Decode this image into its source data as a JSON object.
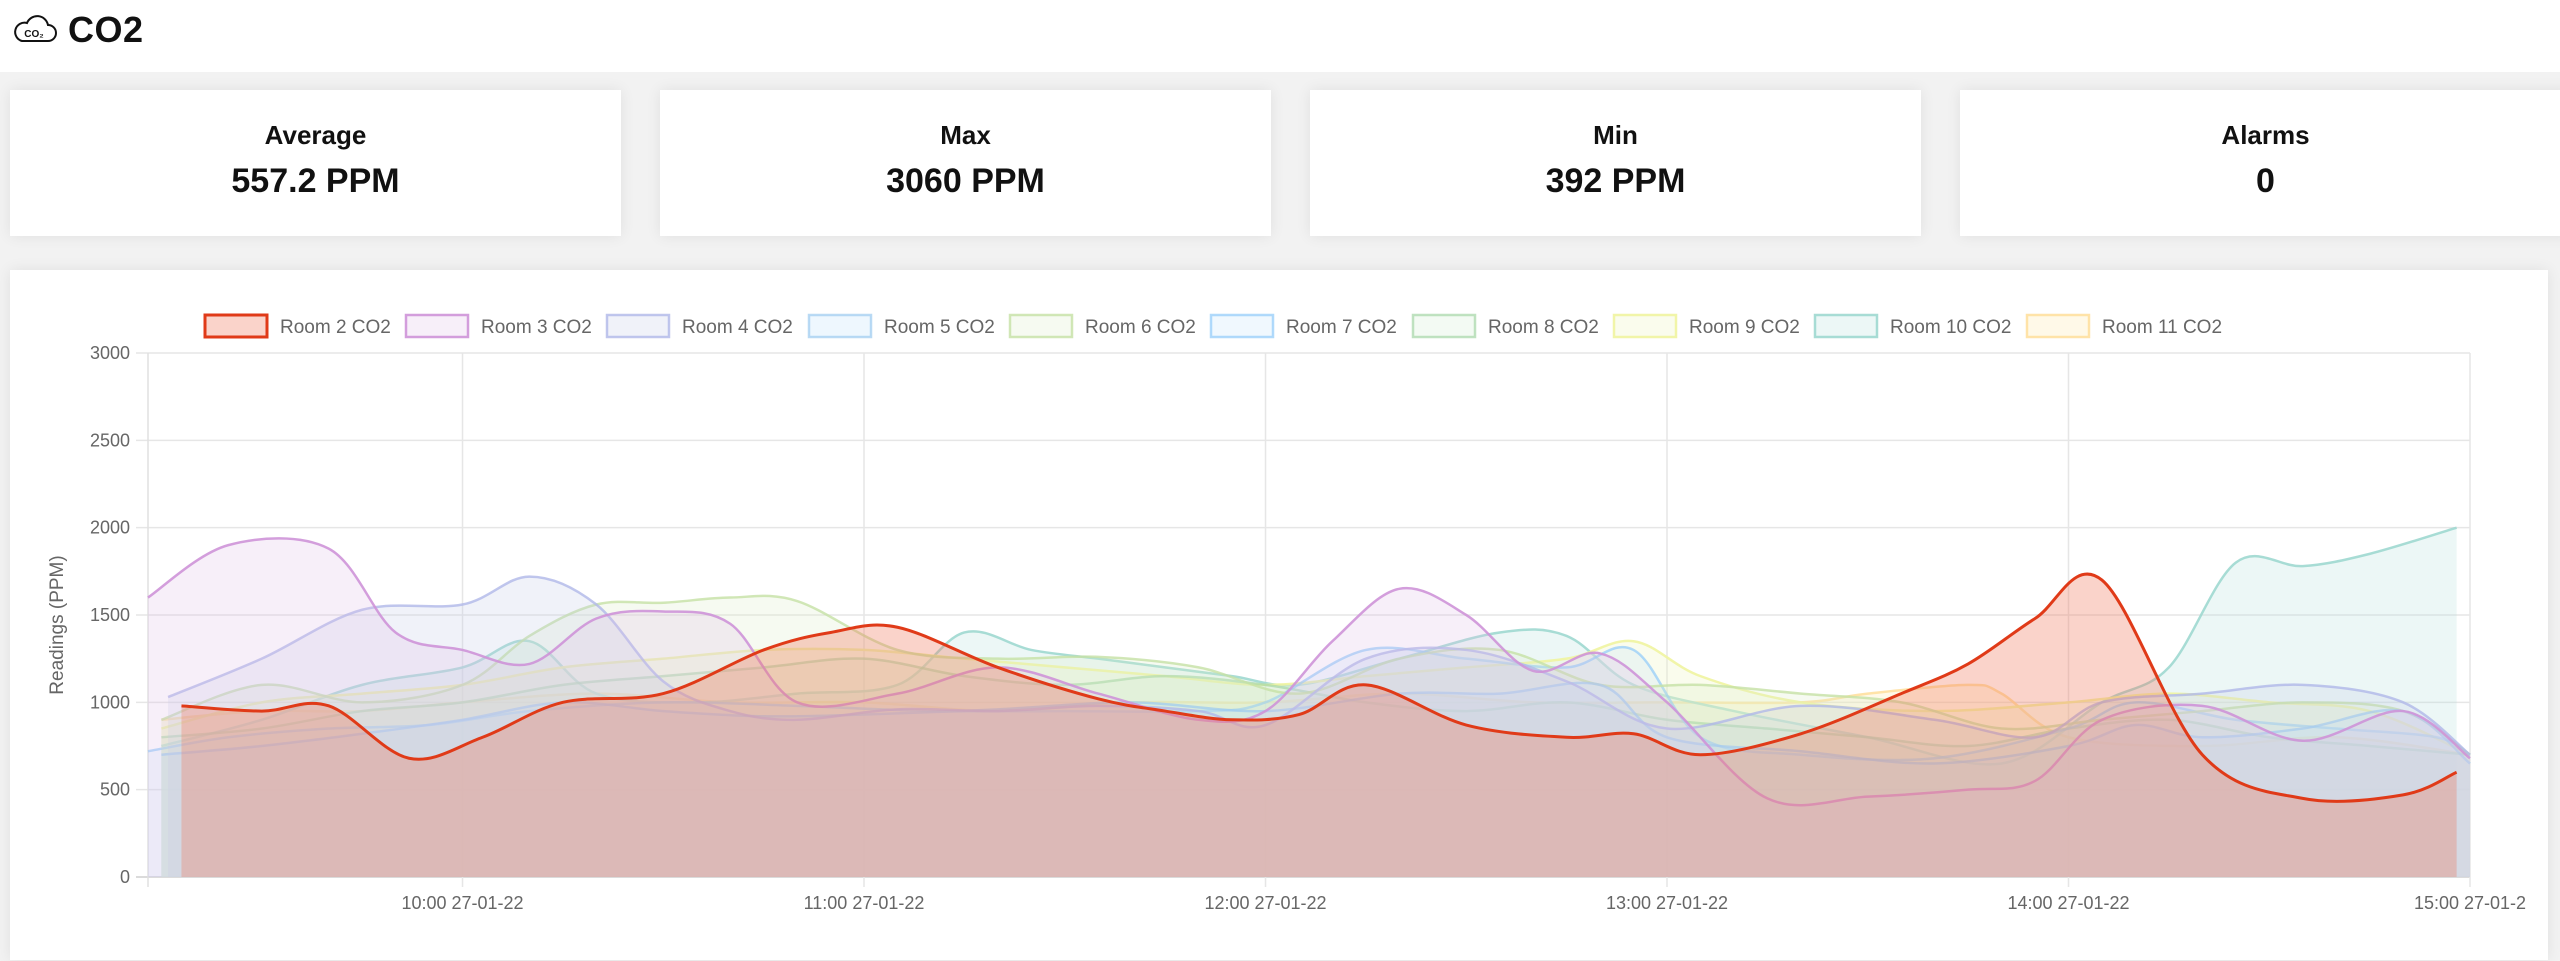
{
  "page": {
    "title": "CO2",
    "icon": "co2-cloud-icon",
    "icon_text": "CO₂"
  },
  "stats": [
    {
      "label": "Average",
      "value": "557.2 PPM"
    },
    {
      "label": "Max",
      "value": "3060 PPM"
    },
    {
      "label": "Min",
      "value": "392 PPM"
    },
    {
      "label": "Alarms",
      "value": "0"
    }
  ],
  "chart_data": {
    "type": "area",
    "ylabel": "Readings (PPM)",
    "ylim": [
      0,
      3000
    ],
    "yticks": [
      0,
      500,
      1000,
      1500,
      2000,
      2500,
      3000
    ],
    "xlim": [
      "09:13",
      "15:00"
    ],
    "xticks": [
      {
        "x": "10:00",
        "label": "10:00 27-01-22"
      },
      {
        "x": "11:00",
        "label": "11:00 27-01-22"
      },
      {
        "x": "12:00",
        "label": "12:00 27-01-22"
      },
      {
        "x": "13:00",
        "label": "13:00 27-01-22"
      },
      {
        "x": "14:00",
        "label": "14:00 27-01-22"
      },
      {
        "x": "15:00",
        "label": "15:00 27-01-2"
      }
    ],
    "grid": true,
    "legend": "top",
    "series": [
      {
        "name": "Room 2 CO2",
        "color": "#e03a18",
        "fill": "rgba(240,120,95,0.33)",
        "stroke_opacity": 1,
        "width": 3,
        "x": [
          "09:18",
          "09:30",
          "09:40",
          "09:52",
          "10:03",
          "10:15",
          "10:30",
          "10:45",
          "10:55",
          "11:05",
          "11:20",
          "11:35",
          "11:45",
          "11:55",
          "12:05",
          "12:15",
          "12:30",
          "12:45",
          "12:55",
          "13:05",
          "13:20",
          "13:35",
          "13:45",
          "13:55",
          "14:05",
          "14:20",
          "14:35",
          "14:50",
          "14:58"
        ],
        "y": [
          980,
          950,
          980,
          680,
          800,
          1000,
          1050,
          1300,
          1400,
          1430,
          1200,
          1020,
          950,
          900,
          930,
          1100,
          870,
          800,
          820,
          700,
          820,
          1050,
          1220,
          1480,
          1700,
          700,
          450,
          470,
          600
        ]
      },
      {
        "name": "Room 3 CO2",
        "color": "#ce93d8",
        "fill": "rgba(225,190,231,0.25)",
        "stroke_opacity": 0.9,
        "width": 2.5,
        "x": [
          "09:13",
          "09:25",
          "09:40",
          "09:50",
          "10:00",
          "10:10",
          "10:20",
          "10:30",
          "10:40",
          "10:50",
          "11:05",
          "11:20",
          "11:35",
          "11:50",
          "12:00",
          "12:10",
          "12:20",
          "12:30",
          "12:40",
          "12:50",
          "13:00",
          "13:15",
          "13:30",
          "13:45",
          "13:55",
          "14:05",
          "14:20",
          "14:35",
          "14:50",
          "15:00"
        ],
        "y": [
          1600,
          1900,
          1880,
          1400,
          1300,
          1220,
          1480,
          1520,
          1450,
          1000,
          1050,
          1200,
          1050,
          900,
          950,
          1350,
          1650,
          1500,
          1180,
          1280,
          1000,
          450,
          460,
          500,
          550,
          900,
          980,
          780,
          950,
          680
        ]
      },
      {
        "name": "Room 4 CO2",
        "color": "#b0b8e8",
        "fill": "rgba(197,202,233,0.25)",
        "stroke_opacity": 0.8,
        "width": 2.5,
        "x": [
          "09:16",
          "09:30",
          "09:45",
          "10:00",
          "10:10",
          "10:20",
          "10:30",
          "10:40",
          "10:50",
          "11:05",
          "11:20",
          "11:35",
          "11:50",
          "12:00",
          "12:15",
          "12:30",
          "12:45",
          "13:00",
          "13:20",
          "13:40",
          "13:55",
          "14:05",
          "14:20",
          "14:35",
          "14:50",
          "15:00"
        ],
        "y": [
          1030,
          1250,
          1530,
          1560,
          1720,
          1560,
          1120,
          950,
          900,
          960,
          950,
          980,
          950,
          870,
          1250,
          1300,
          1120,
          850,
          980,
          900,
          800,
          1000,
          1050,
          1100,
          1000,
          700
        ]
      },
      {
        "name": "Room 5 CO2",
        "color": "#9ccbf0",
        "fill": "rgba(187,222,251,0.25)",
        "stroke_opacity": 0.7,
        "width": 2.5,
        "x": [
          "09:15",
          "09:30",
          "09:45",
          "10:00",
          "10:15",
          "10:30",
          "10:45",
          "11:00",
          "11:20",
          "11:40",
          "12:00",
          "12:20",
          "12:35",
          "12:50",
          "13:00",
          "13:20",
          "13:40",
          "14:00",
          "14:10",
          "14:20",
          "14:35",
          "14:50",
          "15:00"
        ],
        "y": [
          700,
          750,
          820,
          900,
          1000,
          950,
          920,
          930,
          960,
          1000,
          950,
          1050,
          1050,
          1100,
          800,
          720,
          650,
          750,
          870,
          800,
          850,
          950,
          650
        ]
      },
      {
        "name": "Room 6 CO2",
        "color": "#c5e1a5",
        "fill": "rgba(220,237,200,0.25)",
        "stroke_opacity": 0.8,
        "width": 2.5,
        "x": [
          "09:15",
          "09:30",
          "09:45",
          "10:00",
          "10:10",
          "10:20",
          "10:30",
          "10:40",
          "10:50",
          "11:05",
          "11:20",
          "11:35",
          "11:50",
          "12:05",
          "12:20",
          "12:35",
          "12:50",
          "13:05",
          "13:20",
          "13:35",
          "13:50",
          "14:05",
          "14:20",
          "14:35",
          "14:50",
          "15:00"
        ],
        "y": [
          900,
          1100,
          1000,
          1100,
          1380,
          1560,
          1570,
          1600,
          1580,
          1300,
          1250,
          1260,
          1200,
          1050,
          1250,
          1300,
          1100,
          1100,
          1050,
          1000,
          850,
          900,
          950,
          1000,
          950,
          700
        ]
      },
      {
        "name": "Room 7 CO2",
        "color": "#90caf9",
        "fill": "rgba(187,222,251,0.22)",
        "stroke_opacity": 0.7,
        "width": 2.5,
        "x": [
          "09:13",
          "09:25",
          "09:40",
          "09:55",
          "10:10",
          "10:30",
          "10:50",
          "11:10",
          "11:30",
          "11:50",
          "12:00",
          "12:15",
          "12:30",
          "12:45",
          "12:55",
          "13:05",
          "13:20",
          "13:40",
          "14:00",
          "14:10",
          "14:25",
          "14:40",
          "14:55",
          "15:00"
        ],
        "y": [
          720,
          800,
          850,
          870,
          950,
          1000,
          980,
          950,
          950,
          950,
          1000,
          1300,
          1250,
          1200,
          1300,
          800,
          700,
          680,
          850,
          1000,
          900,
          850,
          800,
          700
        ]
      },
      {
        "name": "Room 8 CO2",
        "color": "#a5d6a7",
        "fill": "rgba(200,230,201,0.22)",
        "stroke_opacity": 0.7,
        "width": 2.5,
        "x": [
          "09:15",
          "09:30",
          "09:45",
          "10:00",
          "10:15",
          "10:30",
          "10:45",
          "11:00",
          "11:15",
          "11:30",
          "11:45",
          "12:00",
          "12:15",
          "12:30",
          "12:45",
          "13:00",
          "13:15",
          "13:30",
          "13:45",
          "14:00",
          "14:15",
          "14:30",
          "14:45",
          "15:00"
        ],
        "y": [
          800,
          850,
          950,
          1000,
          1100,
          1150,
          1200,
          1250,
          1150,
          1100,
          1150,
          1100,
          1000,
          950,
          1000,
          900,
          850,
          800,
          750,
          850,
          900,
          800,
          750,
          700
        ]
      },
      {
        "name": "Room 9 CO2",
        "color": "#f0f4a0",
        "fill": "rgba(240,244,195,0.30)",
        "stroke_opacity": 0.9,
        "width": 2.5,
        "x": [
          "09:15",
          "09:30",
          "09:45",
          "10:00",
          "10:15",
          "10:30",
          "10:45",
          "11:00",
          "11:15",
          "11:30",
          "11:45",
          "12:00",
          "12:15",
          "12:30",
          "12:45",
          "12:55",
          "13:05",
          "13:20",
          "13:40",
          "14:00",
          "14:15",
          "14:30",
          "14:45",
          "15:00"
        ],
        "y": [
          850,
          1000,
          1050,
          1100,
          1200,
          1250,
          1300,
          1300,
          1250,
          1200,
          1150,
          1100,
          1150,
          1200,
          1250,
          1350,
          1150,
          1000,
          950,
          1000,
          1050,
          1000,
          950,
          700
        ]
      },
      {
        "name": "Room 10 CO2",
        "color": "#9fd8d0",
        "fill": "rgba(178,223,219,0.25)",
        "stroke_opacity": 0.9,
        "width": 2.5,
        "x": [
          "09:15",
          "09:30",
          "09:45",
          "10:00",
          "10:10",
          "10:20",
          "10:35",
          "10:50",
          "11:05",
          "11:15",
          "11:25",
          "11:35",
          "11:45",
          "11:55",
          "12:05",
          "12:20",
          "12:35",
          "12:45",
          "12:55",
          "13:10",
          "13:30",
          "13:50",
          "14:05",
          "14:15",
          "14:25",
          "14:35",
          "14:45",
          "14:58"
        ],
        "y": [
          750,
          900,
          1100,
          1200,
          1350,
          1050,
          1000,
          1050,
          1100,
          1400,
          1300,
          1250,
          1200,
          1150,
          1100,
          1250,
          1400,
          1380,
          1100,
          950,
          800,
          650,
          1000,
          1200,
          1800,
          1780,
          1850,
          2000
        ]
      },
      {
        "name": "Room 11 CO2",
        "color": "#ffe0a0",
        "fill": "rgba(255,236,179,0.30)",
        "stroke_opacity": 0.9,
        "width": 2.5,
        "x": [
          "09:15",
          "09:30",
          "09:45",
          "10:00",
          "10:20",
          "10:40",
          "11:00",
          "11:20",
          "11:40",
          "12:00",
          "12:20",
          "12:40",
          "13:00",
          "13:20",
          "13:30",
          "13:45",
          "13:50",
          "14:00",
          "14:20",
          "14:40",
          "15:00"
        ],
        "y": [
          900,
          950,
          950,
          1000,
          1050,
          1000,
          1000,
          950,
          1000,
          1000,
          1050,
          1000,
          1000,
          1000,
          1050,
          1100,
          1050,
          800,
          750,
          800,
          700
        ]
      }
    ]
  }
}
